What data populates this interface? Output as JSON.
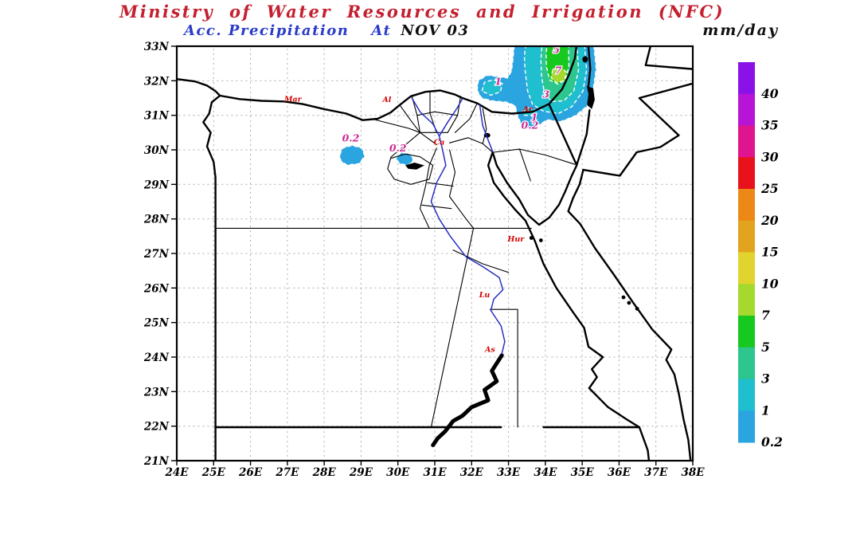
{
  "header": {
    "title": "Ministry of Water Resources and Irrigation (NFC)",
    "subtitle_label": "Acc. Precipitation",
    "subtitle_at": "At",
    "subtitle_value": "NOV 03",
    "units": "mm/day"
  },
  "colors": {
    "title": "#c42030",
    "subtitle": "#2a3cc8",
    "subtitle_value": "#101010",
    "map_line": "#000000",
    "river": "#2530c0",
    "grid": "#b3b3b3",
    "contour_label": "#cc2b94",
    "station_label": "#d40000",
    "contour_dash": "#ffffff"
  },
  "axes": {
    "x_ticks": [
      "24E",
      "25E",
      "26E",
      "27E",
      "28E",
      "29E",
      "30E",
      "31E",
      "32E",
      "33E",
      "34E",
      "35E",
      "36E",
      "37E",
      "38E"
    ],
    "y_ticks": [
      "33N",
      "32N",
      "31N",
      "30N",
      "29N",
      "28N",
      "27N",
      "26N",
      "25N",
      "24N",
      "23N",
      "22N",
      "21N"
    ]
  },
  "colorbar": {
    "labels": [
      "40",
      "35",
      "30",
      "25",
      "20",
      "15",
      "10",
      "7",
      "5",
      "3",
      "1",
      "0.2"
    ],
    "colors": [
      "#8a12e8",
      "#b814d6",
      "#e0148e",
      "#e8121c",
      "#ec8816",
      "#e2a41e",
      "#e2d42e",
      "#a6d92e",
      "#17c81e",
      "#2cc68e",
      "#1fbfd0",
      "#2aa5e0"
    ]
  },
  "map_labels": {
    "stations": [
      {
        "label": "Mar",
        "lon": 27.15,
        "lat": 31.47
      },
      {
        "label": "Al",
        "lon": 29.7,
        "lat": 31.45
      },
      {
        "label": "Ca",
        "lon": 31.12,
        "lat": 30.22
      },
      {
        "label": "Ar",
        "lon": 33.52,
        "lat": 31.18
      },
      {
        "label": "Hur",
        "lon": 33.2,
        "lat": 27.42
      },
      {
        "label": "Lu",
        "lon": 32.35,
        "lat": 25.8
      },
      {
        "label": "As",
        "lon": 32.5,
        "lat": 24.22
      }
    ],
    "contours": [
      {
        "label": "5",
        "lon": 34.3,
        "lat": 32.9
      },
      {
        "label": "7",
        "lon": 34.35,
        "lat": 32.3
      },
      {
        "label": "1",
        "lon": 32.72,
        "lat": 31.97
      },
      {
        "label": "3",
        "lon": 34.02,
        "lat": 31.6
      },
      {
        "label": "1",
        "lon": 33.7,
        "lat": 30.93
      },
      {
        "label": "0.2",
        "lon": 33.58,
        "lat": 30.7
      },
      {
        "label": "0.2",
        "lon": 28.72,
        "lat": 30.33
      },
      {
        "label": "0.2",
        "lon": 30.0,
        "lat": 30.05
      }
    ]
  },
  "chart_data": {
    "type": "filled_contour_map",
    "title": "Ministry of Water Resources and Irrigation (NFC)",
    "variable": "Acc. Precipitation",
    "date_label": "NOV 03",
    "units": "mm/day",
    "region": {
      "lon_min": 24,
      "lon_max": 38,
      "lat_min": 21,
      "lat_max": 33
    },
    "contour_levels_mm": [
      0.2,
      1,
      3,
      5,
      7,
      10,
      15,
      20,
      25,
      30,
      35,
      40
    ],
    "legend_position": "right",
    "grid": "dotted",
    "features": [
      {
        "name": "storm-east-mediterranean-levant",
        "approx_center": {
          "lon": 34.4,
          "lat": 32.2
        },
        "peak_band_mm": "7-10",
        "bands_present_mm": [
          "0.2",
          "1",
          "3",
          "5",
          "7"
        ]
      },
      {
        "name": "patch-western-desert",
        "approx_center": {
          "lon": 28.75,
          "lat": 29.85
        },
        "band_mm": "0.2-1"
      },
      {
        "name": "patch-south-of-delta",
        "approx_center": {
          "lon": 30.2,
          "lat": 29.7
        },
        "band_mm": "0.2-1"
      }
    ]
  }
}
